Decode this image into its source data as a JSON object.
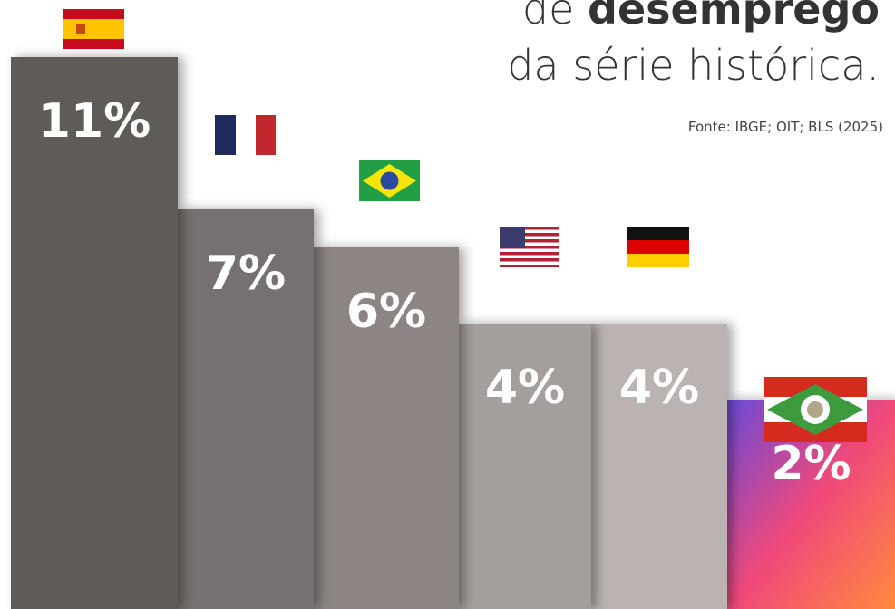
{
  "chart_data": {
    "type": "bar",
    "title": {
      "light": "de",
      "bold": "desemprego",
      "line2": "da série histórica."
    },
    "source": "Fonte: IBGE; OIT; BLS (2025)",
    "categories": [
      null,
      null,
      null,
      null,
      null,
      null
    ],
    "values": [
      11,
      7,
      6,
      4,
      4,
      2
    ],
    "value_labels": [
      "11%",
      "7%",
      "6%",
      "4%",
      "4%",
      "2%"
    ],
    "colors": [
      "#5f5b59",
      "#76716f",
      "#8c8584",
      "#a49e9d",
      "#bab3b2",
      "#f0487a"
    ],
    "ylim": [
      -3.5,
      12.5
    ]
  }
}
